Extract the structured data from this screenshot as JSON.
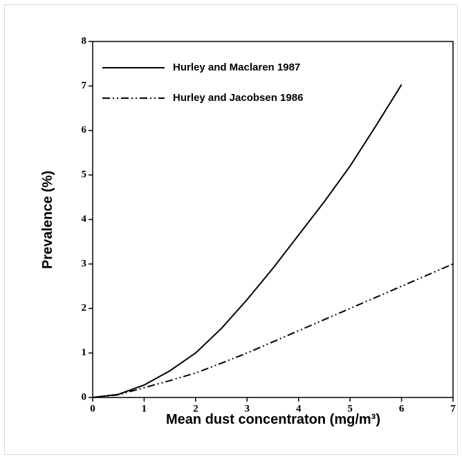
{
  "chart_data": {
    "type": "line",
    "x_label": "Mean dust concentraton (mg/m³)",
    "y_label": "Prevalence (%)",
    "x": [
      0,
      0.5,
      1,
      1.5,
      2,
      2.5,
      3,
      3.5,
      4,
      4.5,
      5,
      5.5,
      6,
      6.5,
      7
    ],
    "series": [
      {
        "name": "Hurley and Maclaren 1987",
        "color": "#000000",
        "dash": "solid",
        "values": [
          0,
          0.07,
          0.28,
          0.6,
          1.0,
          1.55,
          2.2,
          2.9,
          3.65,
          4.4,
          5.2,
          6.1,
          7.03,
          null,
          null
        ]
      },
      {
        "name": "Hurley and Jacobsen 1986",
        "color": "#000000",
        "dash": "dash-dot-dot",
        "values": [
          0,
          0.06,
          0.22,
          0.38,
          0.55,
          0.77,
          1.0,
          1.25,
          1.5,
          1.75,
          2.0,
          2.25,
          2.5,
          2.75,
          3.0
        ]
      }
    ],
    "xlim": [
      0,
      7
    ],
    "ylim": [
      0,
      8
    ],
    "xticks": [
      0,
      1,
      2,
      3,
      4,
      5,
      6,
      7
    ],
    "yticks": [
      0,
      1,
      2,
      3,
      4,
      5,
      6,
      7,
      8
    ],
    "legend": "upper-left",
    "grid": false
  }
}
